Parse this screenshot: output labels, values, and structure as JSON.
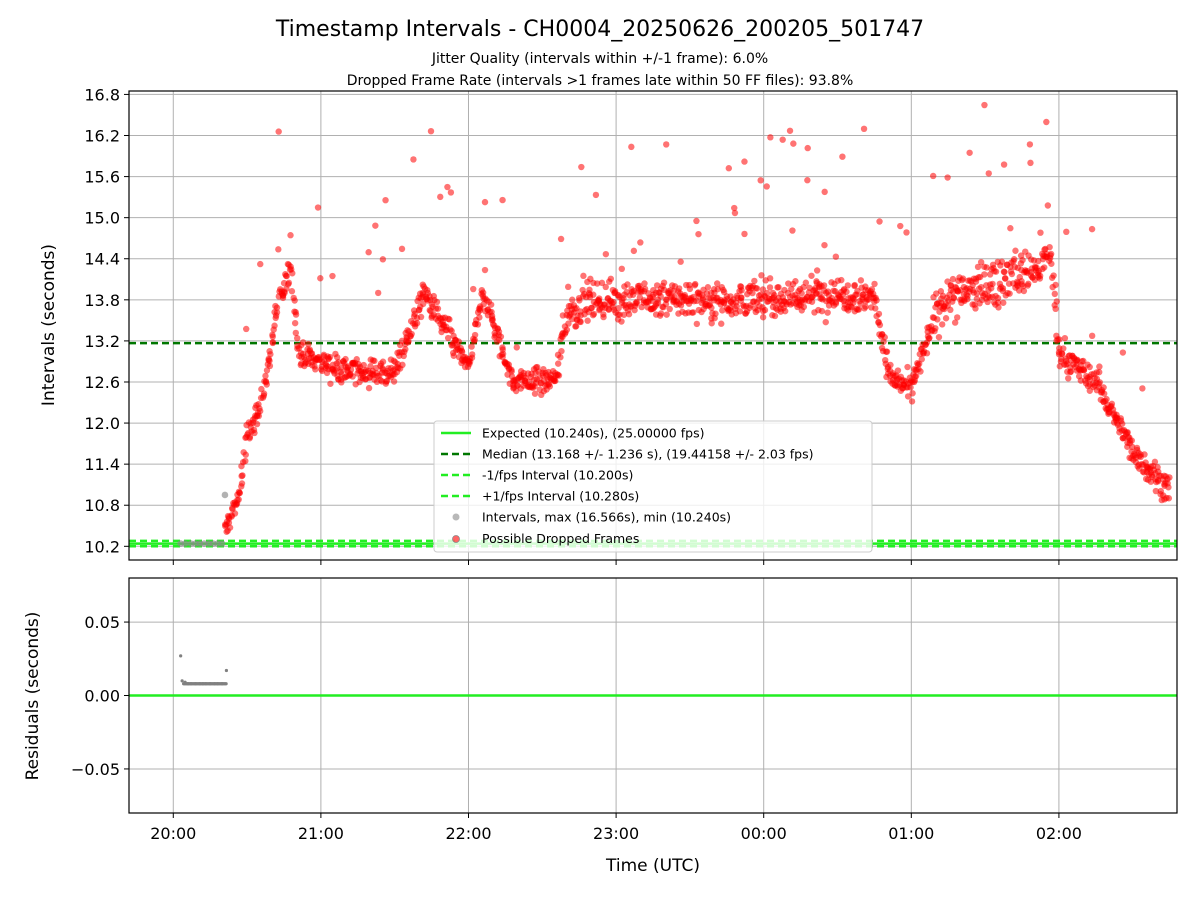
{
  "title": "Timestamp Intervals - CH0004_20250626_200205_501747",
  "subtitle_1": "Jitter Quality (intervals within +/-1 frame): 6.0%",
  "subtitle_2": "Dropped Frame Rate (intervals >1 frames late within 50 FF files): 93.8%",
  "chart_data": [
    {
      "type": "scatter",
      "panel": "top",
      "ylabel": "Intervals (seconds)",
      "xlabel": "",
      "ylim": [
        10.0,
        16.85
      ],
      "yticks": [
        10.2,
        10.8,
        11.4,
        12.0,
        12.6,
        13.2,
        13.8,
        14.4,
        15.0,
        15.6,
        16.2,
        16.8
      ],
      "ytick_labels": [
        "10.2",
        "10.8",
        "11.4",
        "12.0",
        "12.6",
        "13.2",
        "13.8",
        "14.4",
        "15.0",
        "15.6",
        "16.2",
        "16.8"
      ],
      "grid": true,
      "legend_position": "lower-center",
      "reference_lines": [
        {
          "name": "Expected (10.240s), (25.00000 fps)",
          "y": 10.24,
          "style": "solid",
          "color": "#22ee22"
        },
        {
          "name": "Median (13.168 +/- 1.236 s), (19.44158 +/- 2.03 fps)",
          "y": 13.168,
          "style": "dashed",
          "color": "#007700"
        },
        {
          "name": "-1/fps Interval (10.200s)",
          "y": 10.2,
          "style": "dashed",
          "color": "#22ee22"
        },
        {
          "name": "+1/fps Interval (10.280s)",
          "y": 10.28,
          "style": "dashed",
          "color": "#22ee22"
        }
      ],
      "series": [
        {
          "name": "Intervals, max (16.566s), min (10.240s)",
          "color": "#888888",
          "x_hours": [
            20.05,
            20.08,
            20.12,
            20.15,
            20.18,
            20.21,
            20.24,
            20.27,
            20.3,
            20.33,
            20.35
          ],
          "y": [
            10.24,
            10.24,
            10.24,
            10.24,
            10.24,
            10.24,
            10.24,
            10.24,
            10.24,
            10.24,
            10.95
          ]
        },
        {
          "name": "Possible Dropped Frames",
          "color": "#ff0000",
          "trend_x_hours": [
            20.35,
            20.45,
            20.5,
            20.6,
            20.7,
            20.8,
            20.85,
            21.0,
            21.2,
            21.5,
            21.7,
            22.0,
            22.1,
            22.3,
            22.6,
            22.65,
            22.8,
            23.0,
            23.5,
            24.0,
            24.5,
            24.75,
            24.85,
            25.0,
            25.2,
            25.5,
            25.8,
            25.95,
            26.0,
            26.25,
            26.5,
            26.75
          ],
          "trend_y": [
            10.4,
            11.0,
            11.8,
            12.3,
            13.6,
            14.3,
            13.0,
            12.9,
            12.75,
            12.75,
            13.9,
            12.8,
            13.9,
            12.6,
            12.65,
            13.5,
            13.8,
            13.8,
            13.8,
            13.8,
            13.9,
            13.85,
            12.7,
            12.5,
            13.8,
            14.0,
            14.2,
            14.4,
            13.0,
            12.6,
            11.6,
            11.0
          ]
        }
      ]
    },
    {
      "type": "scatter",
      "panel": "bottom",
      "ylabel": "Residuals (seconds)",
      "xlabel": "Time (UTC)",
      "ylim": [
        -0.08,
        0.08
      ],
      "yticks": [
        -0.05,
        0.0,
        0.05
      ],
      "ytick_labels": [
        "−0.05",
        "0.00",
        "0.05"
      ],
      "xlim_hours": [
        19.7,
        26.8
      ],
      "xticks_hours": [
        20,
        21,
        22,
        23,
        24,
        25,
        26
      ],
      "xtick_labels": [
        "20:00",
        "21:00",
        "22:00",
        "23:00",
        "00:00",
        "01:00",
        "02:00"
      ],
      "grid": true,
      "zero_line_color": "#22ee22",
      "series": [
        {
          "name": "Residuals",
          "color": "#808080",
          "x_hours": [
            20.05,
            20.06,
            20.08,
            20.1,
            20.12,
            20.15,
            20.18,
            20.2,
            20.22,
            20.25,
            20.28,
            20.3,
            20.33,
            20.36
          ],
          "y": [
            0.027,
            0.01,
            0.009,
            0.008,
            0.008,
            0.008,
            0.008,
            0.008,
            0.008,
            0.008,
            0.008,
            0.008,
            0.008,
            0.017
          ]
        }
      ]
    }
  ]
}
